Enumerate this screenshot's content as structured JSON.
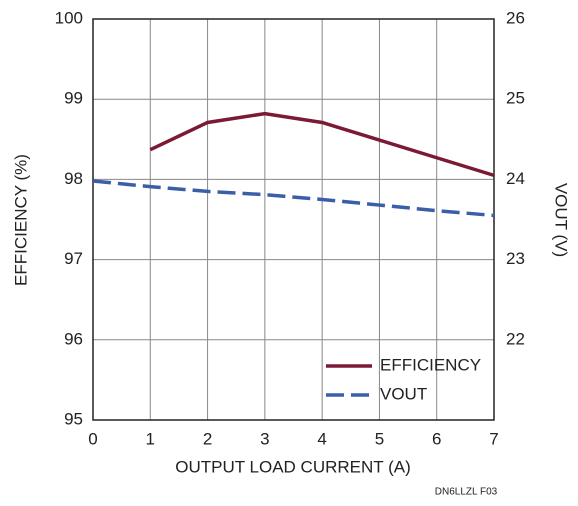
{
  "chart_data": {
    "type": "line",
    "x_label": "OUTPUT LOAD CURRENT (A)",
    "y_label": "EFFICIENCY (%)",
    "y2_label": "VOUT (V)",
    "annotation": "DN6LLZL F03",
    "xlim": [
      0,
      7
    ],
    "xticks": [
      0,
      1,
      2,
      3,
      4,
      5,
      6,
      7
    ],
    "ylim": [
      95,
      100
    ],
    "yticks": [
      95,
      96,
      97,
      98,
      99,
      100
    ],
    "y2lim": [
      21,
      26
    ],
    "y2ticks": [
      22,
      23,
      24,
      25,
      26
    ],
    "grid": true,
    "legend": "lower right",
    "series": [
      {
        "name": "EFFICIENCY",
        "color": "#7b1a35",
        "dashed": false,
        "x": [
          1,
          2,
          3,
          4,
          5,
          6,
          7
        ],
        "values": [
          98.37,
          98.71,
          98.82,
          98.71,
          98.49,
          98.27,
          98.05
        ]
      },
      {
        "name": "VOUT",
        "color": "#3a5ea8",
        "dashed": true,
        "axis": "y2",
        "x": [
          0,
          1,
          2,
          3,
          4,
          5,
          6,
          7
        ],
        "values": [
          23.98,
          23.91,
          23.85,
          23.81,
          23.75,
          23.68,
          23.61,
          23.55
        ]
      }
    ]
  }
}
